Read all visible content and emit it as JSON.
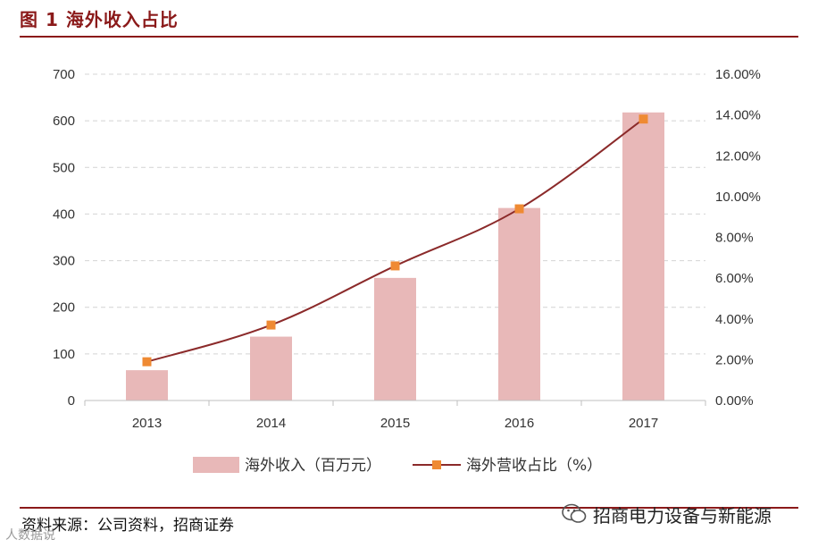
{
  "header": {
    "figure_title": "图 1  海外收入占比"
  },
  "footer": {
    "source": "资料来源：公司资料，招商证券",
    "watermark": "招商电力设备与新能源",
    "corner_watermark": "人数据说"
  },
  "colors": {
    "bar": "#e8b8b8",
    "line": "#8b2a2a",
    "marker": "#ef8a33",
    "rule": "#8b1a1a",
    "grid": "#d4d4d4"
  },
  "chart_data": {
    "type": "bar",
    "categories": [
      "2013",
      "2014",
      "2015",
      "2016",
      "2017"
    ],
    "series": [
      {
        "name": "海外收入（百万元）",
        "type": "bar",
        "axis": "left",
        "values": [
          65,
          137,
          263,
          413,
          618
        ]
      },
      {
        "name": "海外营收占比（%）",
        "type": "line",
        "axis": "right",
        "values": [
          1.9,
          3.7,
          6.6,
          9.4,
          13.8
        ]
      }
    ],
    "y_left": {
      "min": 0,
      "max": 700,
      "ticks": [
        "0",
        "100",
        "200",
        "300",
        "400",
        "500",
        "600",
        "700"
      ]
    },
    "y_right": {
      "min": 0,
      "max": 16,
      "ticks": [
        "0.00%",
        "2.00%",
        "4.00%",
        "6.00%",
        "8.00%",
        "10.00%",
        "12.00%",
        "14.00%",
        "16.00%"
      ]
    },
    "grid": true,
    "legend": "bottom"
  }
}
